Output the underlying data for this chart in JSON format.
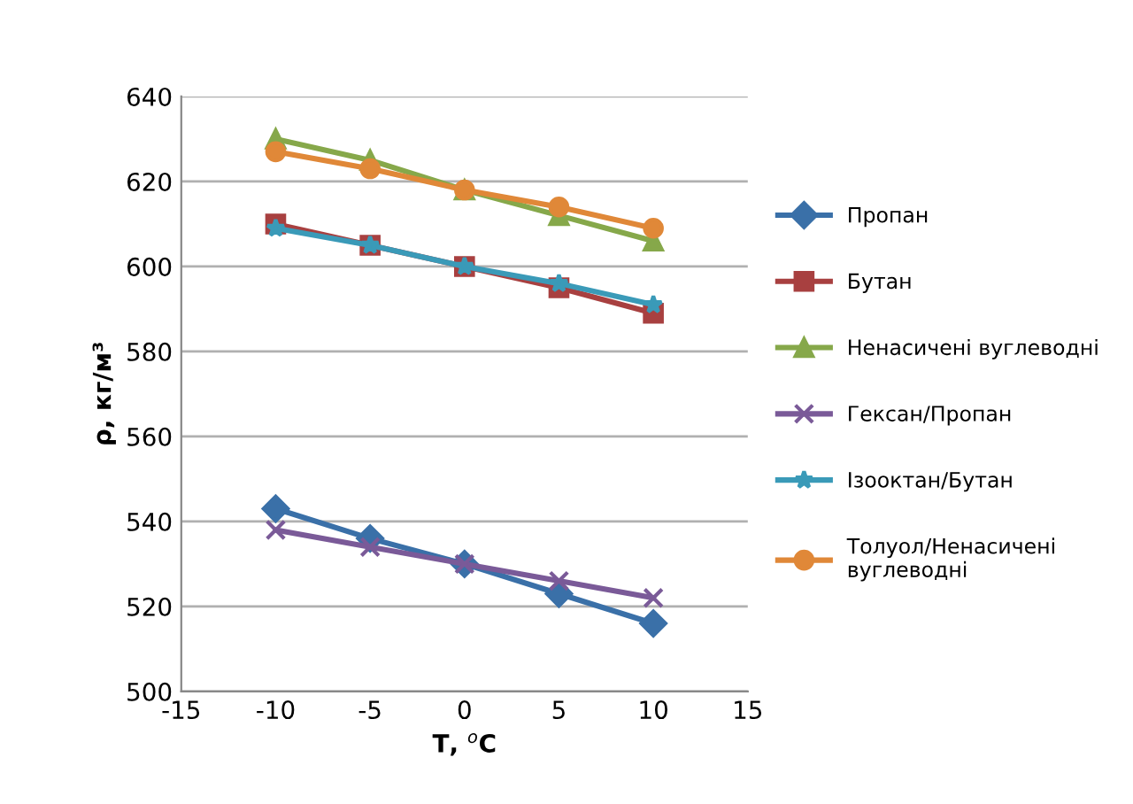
{
  "chart_data": {
    "type": "line",
    "xlabel": "T, $^{o}$C",
    "ylabel": "ρ, кг/м³",
    "x": [
      -10,
      -5,
      0,
      5,
      10
    ],
    "xlim": [
      -15,
      15
    ],
    "xticks": [
      -15,
      -10,
      -5,
      0,
      5,
      10,
      15
    ],
    "ylim": [
      500,
      640
    ],
    "yticks": [
      500,
      520,
      540,
      560,
      580,
      600,
      620,
      640
    ],
    "grid": "y",
    "legend": "right",
    "series": [
      {
        "name": "Пропан",
        "color": "#3a70a8",
        "marker": "diamond",
        "values": [
          543,
          536,
          530,
          523,
          516
        ]
      },
      {
        "name": "Бутан",
        "color": "#a84040",
        "marker": "square",
        "values": [
          610,
          605,
          600,
          595,
          589
        ]
      },
      {
        "name": "Ненасичені вуглеводні",
        "color": "#86a84a",
        "marker": "triangle",
        "values": [
          630,
          625,
          618,
          612,
          606
        ]
      },
      {
        "name": "Гексан/Пропан",
        "color": "#7a5a98",
        "marker": "cross",
        "values": [
          538,
          534,
          530,
          526,
          522
        ]
      },
      {
        "name": "Ізооктан/Бутан",
        "color": "#3a9ab8",
        "marker": "star",
        "values": [
          609,
          605,
          600,
          596,
          591
        ]
      },
      {
        "name": "Толуол/Ненасичені вуглеводні",
        "color": "#e08838",
        "marker": "circle",
        "values": [
          627,
          623,
          618,
          614,
          609
        ]
      }
    ]
  }
}
